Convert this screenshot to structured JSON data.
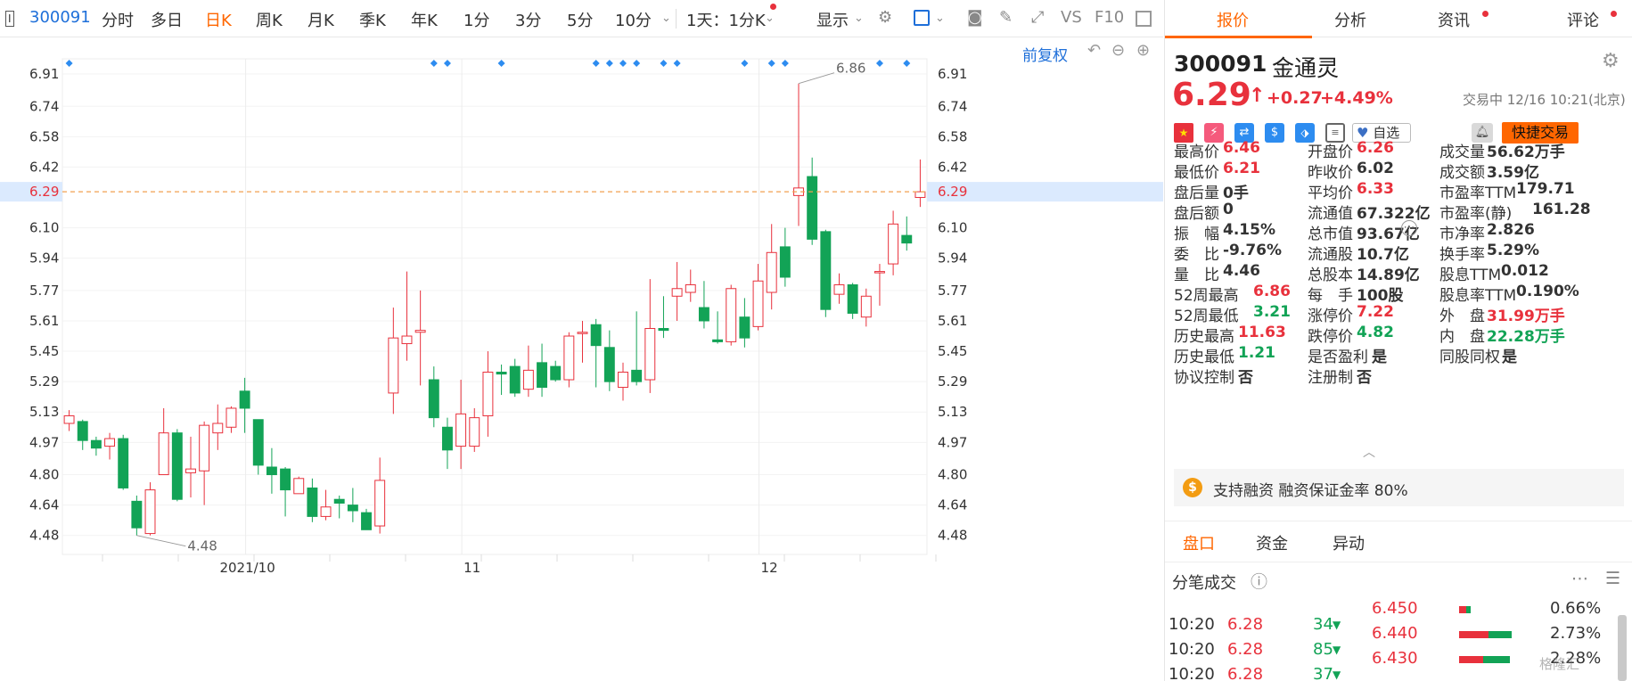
{
  "toolbar": {
    "mode_icon": "I",
    "code": "300091",
    "periods": [
      "分时",
      "多日",
      "日K",
      "周K",
      "月K",
      "季K",
      "年K",
      "1分",
      "3分",
      "5分",
      "10分"
    ],
    "active_period": "日K",
    "multi": "1天：1分K",
    "display": "显示",
    "vs": "VS",
    "f10": "F10",
    "adjust": "前复权"
  },
  "chart_data": {
    "type": "candlestick",
    "ylim": [
      4.38,
      6.99
    ],
    "yticks": [
      "6.91",
      "6.74",
      "6.58",
      "6.42",
      "6.29",
      "6.10",
      "5.94",
      "5.77",
      "5.61",
      "5.45",
      "5.29",
      "5.13",
      "4.97",
      "4.80",
      "4.64",
      "4.48"
    ],
    "x_labels": [
      "2021/10",
      "11",
      "12"
    ],
    "current_price": "6.29",
    "high_annotation": "6.86",
    "low_annotation": "4.48",
    "candles": [
      [
        5.07,
        5.11,
        5.14,
        5.03
      ],
      [
        5.08,
        4.98,
        5.09,
        4.93
      ],
      [
        4.98,
        4.94,
        5.0,
        4.9
      ],
      [
        4.95,
        4.99,
        5.02,
        4.88
      ],
      [
        4.99,
        4.73,
        5.01,
        4.72
      ],
      [
        4.66,
        4.52,
        4.69,
        4.48
      ],
      [
        4.49,
        4.72,
        4.76,
        4.48
      ],
      [
        4.8,
        5.02,
        5.15,
        4.8
      ],
      [
        5.02,
        4.67,
        5.04,
        4.66
      ],
      [
        4.81,
        4.83,
        5.0,
        4.68
      ],
      [
        4.82,
        5.06,
        5.08,
        4.64
      ],
      [
        5.02,
        5.07,
        5.17,
        4.93
      ],
      [
        5.05,
        5.15,
        5.16,
        5.02
      ],
      [
        5.24,
        5.15,
        5.31,
        5.02
      ],
      [
        5.09,
        4.85,
        5.09,
        4.8
      ],
      [
        4.84,
        4.8,
        4.94,
        4.7
      ],
      [
        4.83,
        4.72,
        4.84,
        4.58
      ],
      [
        4.7,
        4.78,
        4.79,
        4.7
      ],
      [
        4.73,
        4.58,
        4.78,
        4.55
      ],
      [
        4.58,
        4.63,
        4.72,
        4.56
      ],
      [
        4.67,
        4.65,
        4.69,
        4.57
      ],
      [
        4.64,
        4.61,
        4.73,
        4.55
      ],
      [
        4.6,
        4.51,
        4.62,
        4.51
      ],
      [
        4.53,
        4.77,
        4.89,
        4.49
      ],
      [
        5.23,
        5.52,
        5.68,
        5.12
      ],
      [
        5.49,
        5.53,
        5.87,
        5.4
      ],
      [
        5.55,
        5.56,
        5.77,
        5.27
      ],
      [
        5.3,
        5.1,
        5.37,
        5.05
      ],
      [
        5.05,
        4.93,
        5.1,
        4.83
      ],
      [
        4.95,
        5.12,
        5.3,
        4.83
      ],
      [
        4.95,
        5.1,
        5.15,
        4.92
      ],
      [
        5.11,
        5.34,
        5.45,
        5.0
      ],
      [
        5.34,
        5.33,
        5.38,
        5.22
      ],
      [
        5.37,
        5.23,
        5.41,
        5.21
      ],
      [
        5.25,
        5.35,
        5.48,
        5.21
      ],
      [
        5.39,
        5.26,
        5.49,
        5.21
      ],
      [
        5.37,
        5.3,
        5.4,
        5.29
      ],
      [
        5.3,
        5.53,
        5.55,
        5.26
      ],
      [
        5.55,
        5.55,
        5.61,
        5.39
      ],
      [
        5.59,
        5.48,
        5.62,
        5.26
      ],
      [
        5.47,
        5.29,
        5.56,
        5.24
      ],
      [
        5.26,
        5.34,
        5.39,
        5.19
      ],
      [
        5.35,
        5.29,
        5.66,
        5.27
      ],
      [
        5.3,
        5.57,
        5.83,
        5.23
      ],
      [
        5.57,
        5.56,
        5.74,
        5.52
      ],
      [
        5.74,
        5.78,
        5.92,
        5.61
      ],
      [
        5.76,
        5.8,
        5.88,
        5.71
      ],
      [
        5.68,
        5.61,
        5.82,
        5.57
      ],
      [
        5.51,
        5.5,
        5.66,
        5.49
      ],
      [
        5.5,
        5.78,
        5.8,
        5.48
      ],
      [
        5.63,
        5.52,
        5.73,
        5.47
      ],
      [
        5.58,
        5.82,
        5.91,
        5.56
      ],
      [
        5.76,
        5.97,
        6.12,
        5.67
      ],
      [
        6.0,
        5.84,
        6.1,
        5.79
      ],
      [
        6.27,
        6.31,
        6.86,
        6.11
      ],
      [
        6.37,
        6.04,
        6.47,
        6.01
      ],
      [
        6.08,
        5.67,
        6.09,
        5.63
      ],
      [
        5.75,
        5.8,
        5.86,
        5.7
      ],
      [
        5.8,
        5.65,
        5.81,
        5.62
      ],
      [
        5.63,
        5.74,
        5.78,
        5.58
      ],
      [
        5.87,
        5.87,
        5.91,
        5.69
      ],
      [
        5.91,
        6.12,
        6.19,
        5.85
      ],
      [
        6.06,
        6.02,
        6.16,
        5.98
      ],
      [
        6.26,
        6.29,
        6.46,
        6.21
      ]
    ]
  },
  "quote": {
    "tabs": [
      "报价",
      "分析",
      "资讯",
      "评论"
    ],
    "code": "300091",
    "name": "金通灵",
    "price": "6.29",
    "change": "+0.27",
    "change_pct": "+4.49%",
    "status_time": "交易中 12/16 10:21(北京)",
    "watch_label": "自选",
    "trade_button": "快捷交易",
    "stats": [
      [
        {
          "label": "最高价",
          "value": "6.46",
          "color": "red"
        },
        {
          "label": "开盘价",
          "value": "6.26",
          "color": "red"
        },
        {
          "label": "成交量",
          "value": "56.62万手",
          "color": "dark"
        }
      ],
      [
        {
          "label": "最低价",
          "value": "6.21",
          "color": "red"
        },
        {
          "label": "昨收价",
          "value": "6.02",
          "color": "dark"
        },
        {
          "label": "成交额",
          "value": "3.59亿",
          "color": "dark"
        }
      ],
      [
        {
          "label": "盘后量",
          "value": "0手",
          "color": "dark"
        },
        {
          "label": "平均价",
          "value": "6.33",
          "color": "red"
        },
        {
          "label": "市盈率TTM",
          "value": "179.71",
          "color": "dark"
        }
      ],
      [
        {
          "label": "盘后额",
          "value": "0",
          "color": "dark"
        },
        {
          "label": "流通值",
          "value": "67.322亿",
          "color": "dark"
        },
        {
          "label": "市盈率(静)",
          "value": "161.28",
          "color": "dark"
        }
      ],
      [
        {
          "label": "振　幅",
          "value": "4.15%",
          "color": "dark"
        },
        {
          "label": "总市值",
          "value": "93.67亿",
          "color": "dark"
        },
        {
          "label": "市净率",
          "value": "2.826",
          "color": "dark"
        }
      ],
      [
        {
          "label": "委　比",
          "value": "-9.76%",
          "color": "dark"
        },
        {
          "label": "流通股",
          "value": "10.7亿",
          "color": "dark"
        },
        {
          "label": "换手率",
          "value": "5.29%",
          "color": "dark"
        }
      ],
      [
        {
          "label": "量　比",
          "value": "4.46",
          "color": "dark"
        },
        {
          "label": "总股本",
          "value": "14.89亿",
          "color": "dark"
        },
        {
          "label": "股息TTM",
          "value": "0.012",
          "color": "dark"
        }
      ],
      [
        {
          "label": "52周最高",
          "value": "6.86",
          "color": "red"
        },
        {
          "label": "每　手",
          "value": "100股",
          "color": "dark"
        },
        {
          "label": "股息率TTM",
          "value": "0.190%",
          "color": "dark"
        }
      ],
      [
        {
          "label": "52周最低",
          "value": "3.21",
          "color": "green"
        },
        {
          "label": "涨停价",
          "value": "7.22",
          "color": "red"
        },
        {
          "label": "外　盘",
          "value": "31.99万手",
          "color": "red"
        }
      ],
      [
        {
          "label": "历史最高",
          "value": "11.63",
          "color": "red"
        },
        {
          "label": "跌停价",
          "value": "4.82",
          "color": "green"
        },
        {
          "label": "内　盘",
          "value": "22.28万手",
          "color": "green"
        }
      ],
      [
        {
          "label": "历史最低",
          "value": "1.21",
          "color": "green"
        },
        {
          "label": "是否盈利",
          "value": "是",
          "color": "dark"
        },
        {
          "label": "同股同权",
          "value": "是",
          "color": "dark"
        }
      ],
      [
        {
          "label": "协议控制",
          "value": "否",
          "color": "dark"
        },
        {
          "label": "注册制",
          "value": "否",
          "color": "dark"
        },
        {
          "label": "",
          "value": "",
          "color": "dark"
        }
      ]
    ],
    "margin": {
      "badge": "$",
      "text": "支持融资  融资保证金率 80%"
    },
    "sub_tabs": [
      "盘口",
      "资金",
      "异动"
    ],
    "ticks_title": "分笔成交",
    "ticks": [
      {
        "time": "10:20",
        "price": "6.28",
        "vol": "34",
        "dir": "▼"
      },
      {
        "time": "10:20",
        "price": "6.28",
        "vol": "85",
        "dir": "▼"
      },
      {
        "time": "10:20",
        "price": "6.28",
        "vol": "37",
        "dir": "▼"
      }
    ],
    "depth": [
      {
        "price": "6.450",
        "pct": "0.66%",
        "red": 0.0066,
        "green": 0.004
      },
      {
        "price": "6.440",
        "pct": "2.73%",
        "red": 0.0273,
        "green": 0.022
      },
      {
        "price": "6.430",
        "pct": "2.28%",
        "red": 0.0228,
        "green": 0.025
      }
    ],
    "watermark": "格隆汇"
  }
}
